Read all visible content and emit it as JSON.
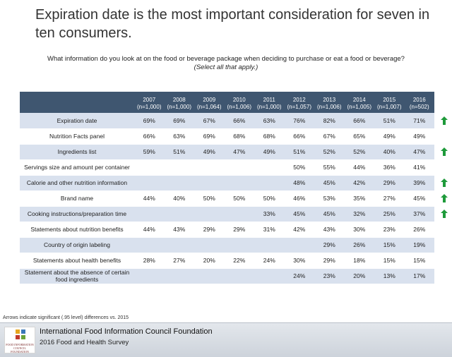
{
  "title": "Expiration date is the most important consideration for seven in ten consumers.",
  "question": {
    "text": "What information do you look at on the food or beverage package when deciding to purchase or eat a food or beverage?",
    "note": "(Select all that apply.)"
  },
  "table": {
    "years": [
      {
        "year": "2007",
        "n": "(n=1,000)"
      },
      {
        "year": "2008",
        "n": "(n=1,000)"
      },
      {
        "year": "2009",
        "n": "(n=1,064)"
      },
      {
        "year": "2010",
        "n": "(n=1,006)"
      },
      {
        "year": "2011",
        "n": "(n=1,000)"
      },
      {
        "year": "2012",
        "n": "(n=1,057)"
      },
      {
        "year": "2013",
        "n": "(n=1,006)"
      },
      {
        "year": "2014",
        "n": "(n=1,005)"
      },
      {
        "year": "2015",
        "n": "(n=1,007)"
      },
      {
        "year": "2016",
        "n": "(n=502)"
      }
    ],
    "rows": [
      {
        "label": "Expiration date",
        "values": [
          "69%",
          "69%",
          "67%",
          "66%",
          "63%",
          "76%",
          "82%",
          "66%",
          "51%",
          "71%"
        ],
        "arrow": true
      },
      {
        "label": "Nutrition Facts panel",
        "values": [
          "66%",
          "63%",
          "69%",
          "68%",
          "68%",
          "66%",
          "67%",
          "65%",
          "49%",
          "49%"
        ],
        "arrow": false
      },
      {
        "label": "Ingredients list",
        "values": [
          "59%",
          "51%",
          "49%",
          "47%",
          "49%",
          "51%",
          "52%",
          "52%",
          "40%",
          "47%"
        ],
        "arrow": true
      },
      {
        "label": "Servings size and amount per container",
        "values": [
          "",
          "",
          "",
          "",
          "",
          "50%",
          "55%",
          "44%",
          "36%",
          "41%"
        ],
        "arrow": false
      },
      {
        "label": "Calorie and other nutrition information",
        "values": [
          "",
          "",
          "",
          "",
          "",
          "48%",
          "45%",
          "42%",
          "29%",
          "39%"
        ],
        "arrow": true
      },
      {
        "label": "Brand name",
        "values": [
          "44%",
          "40%",
          "50%",
          "50%",
          "50%",
          "46%",
          "53%",
          "35%",
          "27%",
          "45%"
        ],
        "arrow": true
      },
      {
        "label": "Cooking instructions/preparation time",
        "values": [
          "",
          "",
          "",
          "",
          "33%",
          "45%",
          "45%",
          "32%",
          "25%",
          "37%"
        ],
        "arrow": true
      },
      {
        "label": "Statements about nutrition benefits",
        "values": [
          "44%",
          "43%",
          "29%",
          "29%",
          "31%",
          "42%",
          "43%",
          "30%",
          "23%",
          "26%"
        ],
        "arrow": false
      },
      {
        "label": "Country of origin labeling",
        "values": [
          "",
          "",
          "",
          "",
          "",
          "",
          "29%",
          "26%",
          "15%",
          "19%"
        ],
        "arrow": false
      },
      {
        "label": "Statements about health benefits",
        "values": [
          "28%",
          "27%",
          "20%",
          "22%",
          "24%",
          "30%",
          "29%",
          "18%",
          "15%",
          "15%"
        ],
        "arrow": false
      },
      {
        "label": "Statement about the absence of certain food ingredients",
        "values": [
          "",
          "",
          "",
          "",
          "",
          "24%",
          "23%",
          "20%",
          "13%",
          "17%"
        ],
        "arrow": false
      }
    ],
    "arrow_color": "#1e9a3a"
  },
  "footnote": "Arrows indicate significant (.95 level) differences vs. 2015",
  "footer": {
    "org": "International Food Information Council Foundation",
    "survey": "2016 Food and Health Survey",
    "logo_text": "FOOD INFORMATION COUNCIL FOUNDATION"
  },
  "colors": {
    "header_bg": "#3f5670",
    "band_bg": "#d9e1ee"
  }
}
